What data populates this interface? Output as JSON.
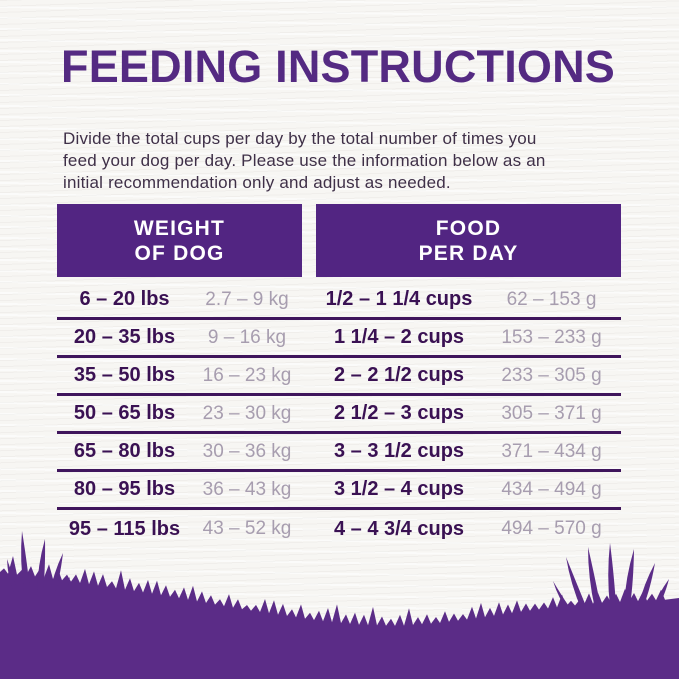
{
  "header": {
    "title": "FEEDING INSTRUCTIONS"
  },
  "intro": {
    "lines": [
      "Divide the total cups per day by the total number of times you",
      "feed your dog per day. Please use the information below as an",
      "initial recommendation only and adjust as needed."
    ]
  },
  "table": {
    "headers": [
      {
        "line1": "WEIGHT",
        "line2": "OF DOG"
      },
      {
        "line1": "FOOD",
        "line2": "PER DAY"
      }
    ],
    "rows": [
      {
        "lbs": "6 – 20 lbs",
        "kg": "2.7 – 9 kg",
        "cups": "1/2 – 1 1/4 cups",
        "grams": "62 – 153 g"
      },
      {
        "lbs": "20 – 35 lbs",
        "kg": "9 – 16 kg",
        "cups": "1 1/4 – 2 cups",
        "grams": "153 – 233 g"
      },
      {
        "lbs": "35 – 50 lbs",
        "kg": "16 – 23 kg",
        "cups": "2 – 2 1/2 cups",
        "grams": "233 – 305 g"
      },
      {
        "lbs": "50 – 65 lbs",
        "kg": "23 – 30 kg",
        "cups": "2 1/2 – 3 cups",
        "grams": "305 – 371 g"
      },
      {
        "lbs": "65 – 80 lbs",
        "kg": "30 – 36 kg",
        "cups": "3 – 3 1/2 cups",
        "grams": "371 – 434 g"
      },
      {
        "lbs": "80 – 95 lbs",
        "kg": "36 – 43 kg",
        "cups": "3 1/2 – 4 cups",
        "grams": "434 – 494 g"
      },
      {
        "lbs": "95 – 115 lbs",
        "kg": "43 – 52 kg",
        "cups": "4 – 4 3/4 cups",
        "grams": "494 – 570 g"
      }
    ]
  },
  "footer": {
    "decoration": "grass-silhouette"
  },
  "colors": {
    "brand_purple": "#522582",
    "grass_purple": "#5b2c87",
    "title_purple": "#542a82",
    "intro_text": "#3f3048",
    "row_dark": "#3a1153",
    "row_muted": "#a79daf",
    "divider": "#3f155c",
    "header_text": "#ffffff",
    "bg": "#f7f6f3"
  }
}
